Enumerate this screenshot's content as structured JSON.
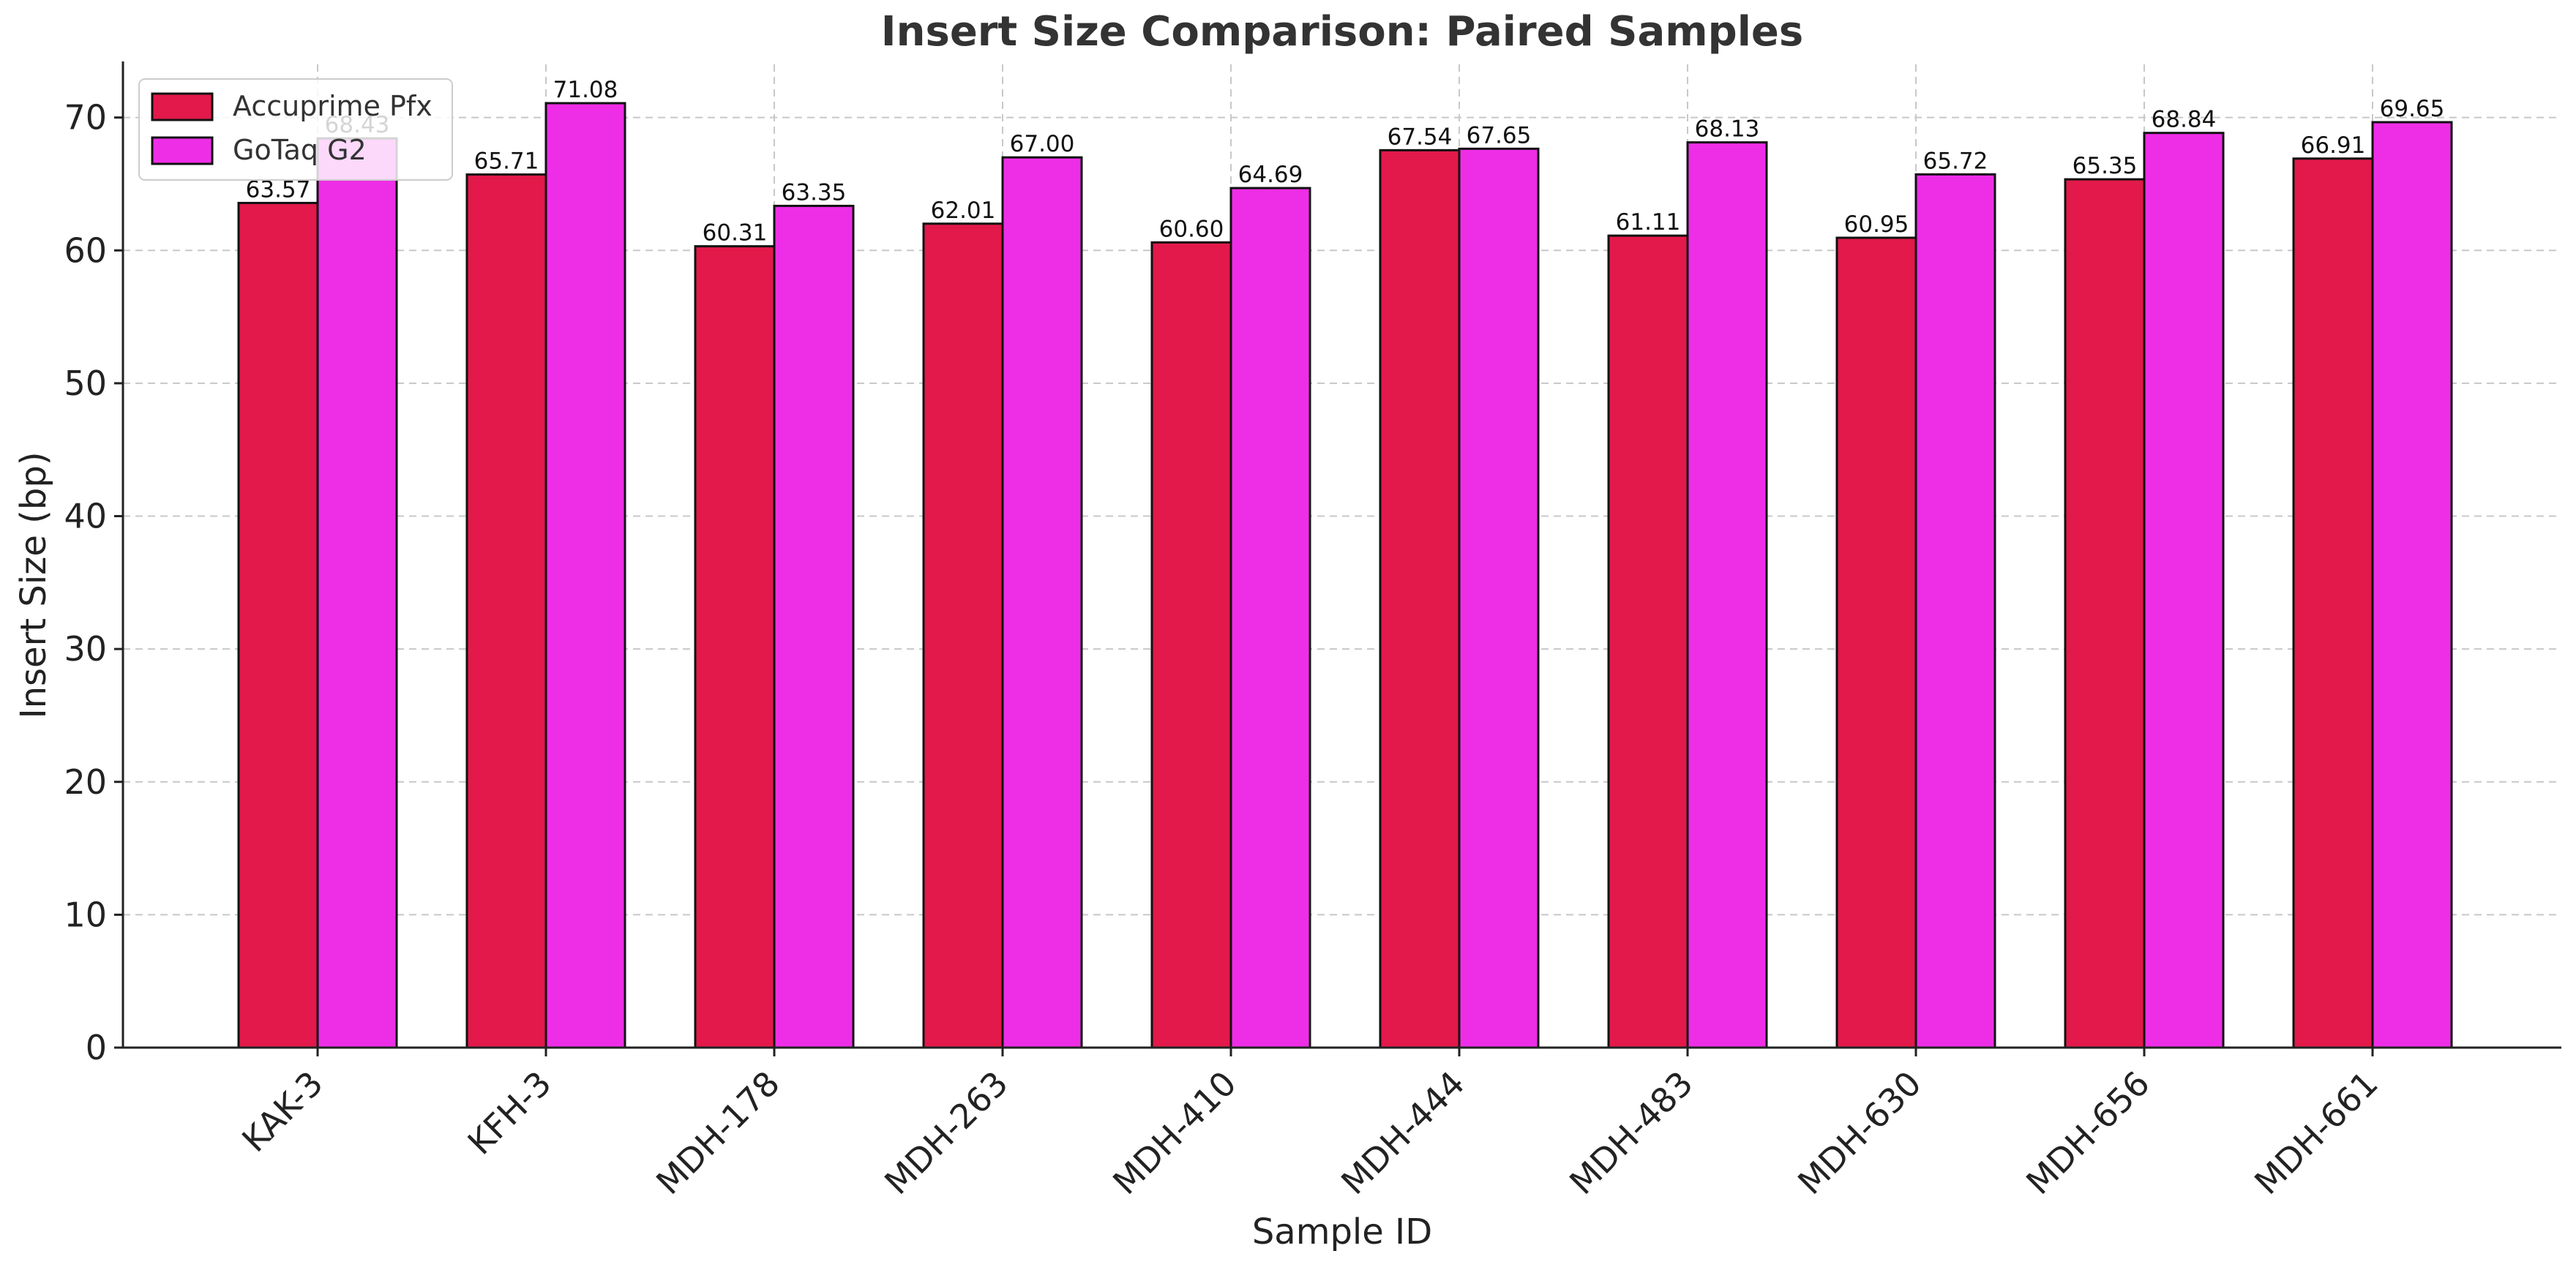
{
  "chart_data": {
    "type": "bar",
    "title": "Insert Size Comparison: Paired Samples",
    "xlabel": "Sample ID",
    "ylabel": "Insert Size (bp)",
    "ylim": [
      0,
      74
    ],
    "yticks": [
      0,
      10,
      20,
      30,
      40,
      50,
      60,
      70
    ],
    "grid": true,
    "legend_position": "top-left",
    "categories": [
      "KAK-3",
      "KFH-3",
      "MDH-178",
      "MDH-263",
      "MDH-410",
      "MDH-444",
      "MDH-483",
      "MDH-630",
      "MDH-656",
      "MDH-661"
    ],
    "series": [
      {
        "name": "Accuprime Pfx",
        "color": "#e2194a",
        "values": [
          63.57,
          65.71,
          60.31,
          62.01,
          60.6,
          67.54,
          61.11,
          60.95,
          65.35,
          66.91
        ],
        "labels": [
          "63.57",
          "65.71",
          "60.31",
          "62.01",
          "60.60",
          "67.54",
          "61.11",
          "60.95",
          "65.35",
          "66.91"
        ]
      },
      {
        "name": "GoTaq G2",
        "color": "#ee2ee6",
        "values": [
          68.43,
          71.08,
          63.35,
          67.0,
          64.69,
          67.65,
          68.13,
          65.72,
          68.84,
          69.65
        ],
        "labels": [
          "68.43",
          "71.08",
          "63.35",
          "67.00",
          "64.69",
          "67.65",
          "68.13",
          "65.72",
          "68.84",
          "69.65"
        ]
      }
    ]
  }
}
